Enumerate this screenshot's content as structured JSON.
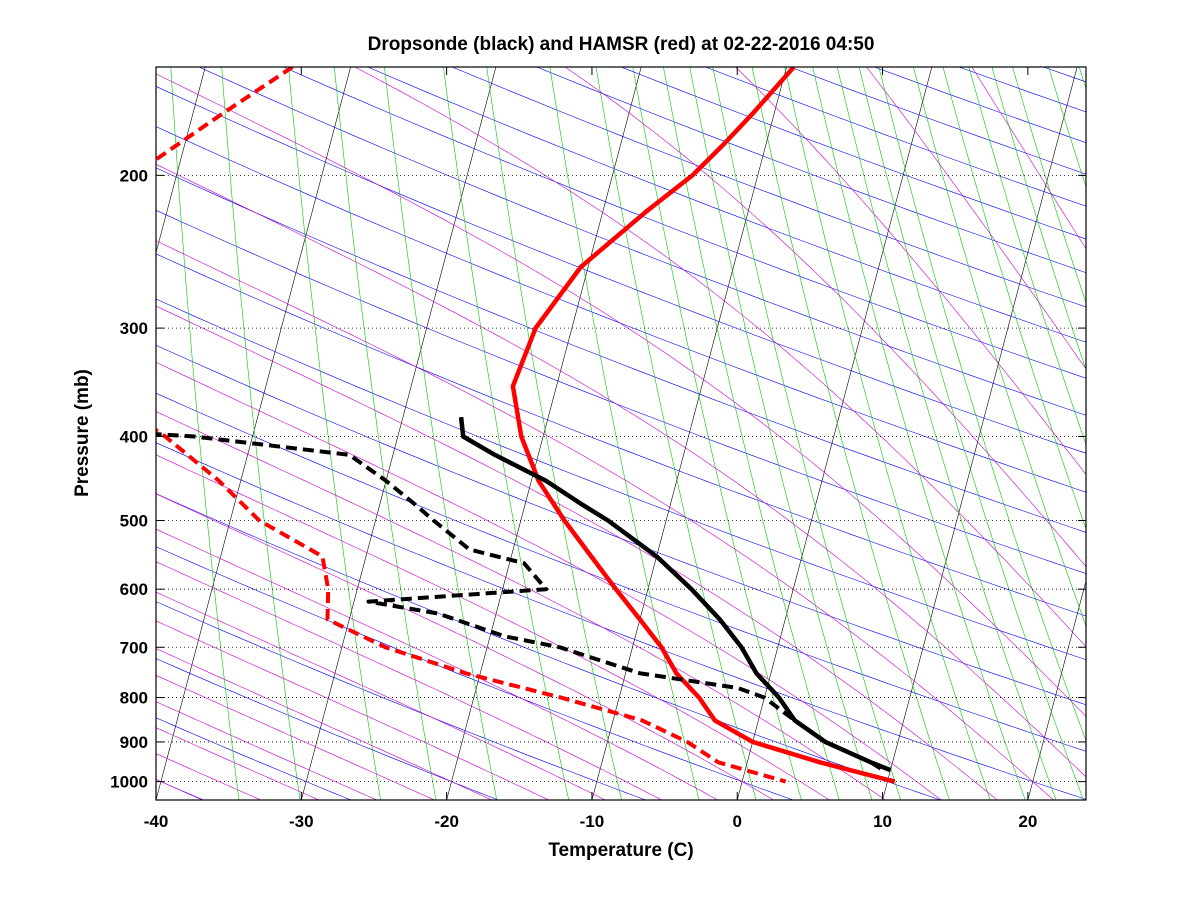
{
  "chart_data": {
    "type": "line",
    "subtype": "skew-T log-P diagram",
    "title": "Dropsonde (black) and HAMSR (red) at 02-22-2016 04:50",
    "xlabel": "Temperature (C)",
    "ylabel": "Pressure (mb)",
    "xlim": [
      -40,
      24
    ],
    "ylim": [
      1050,
      150
    ],
    "yscale": "log",
    "x_ticks": [
      "-40",
      "-30",
      "-20",
      "-10",
      "0",
      "10",
      "20"
    ],
    "y_ticks": [
      "200",
      "300",
      "400",
      "500",
      "600",
      "700",
      "800",
      "900",
      "1000"
    ],
    "grid": "dotted at pressure ticks",
    "colors": {
      "dropsonde": "#000000",
      "hamsr": "#ff0000",
      "isotherm": "#000000",
      "dry_adiabat": "#0000ff",
      "moist_adiabat": "#cc00cc",
      "mixing_ratio": "#00cc00"
    },
    "series": [
      {
        "style": "solid",
        "color": "#ff0000",
        "pressure": [
          150,
          170,
          185,
          200,
          220,
          255,
          300,
          350,
          400,
          450,
          500,
          550,
          600,
          650,
          700,
          750,
          800,
          850,
          900,
          950,
          1000
        ],
        "temperature": [
          -9.5,
          -11.5,
          -13,
          -14.5,
          -17,
          -20.5,
          -22.5,
          -23,
          -21.5,
          -19.5,
          -17,
          -14.5,
          -12.2,
          -10,
          -8,
          -6.5,
          -4.5,
          -3,
          0,
          5,
          10.5
        ]
      },
      {
        "style": "dashed",
        "color": "#ff0000",
        "pressure": [
          150,
          170,
          200,
          255,
          300,
          350,
          400,
          450,
          500,
          550,
          600,
          650,
          700,
          750,
          800,
          850,
          900,
          950,
          1000
        ],
        "temperature": [
          -44,
          -48,
          -53,
          -58,
          -55,
          -52,
          -46,
          -41.5,
          -38,
          -33,
          -32,
          -31.5,
          -27,
          -21,
          -14,
          -8,
          -4.5,
          -2,
          3
        ]
      },
      {
        "style": "solid",
        "color": "#000000",
        "pressure": [
          380,
          400,
          420,
          450,
          480,
          500,
          550,
          600,
          650,
          700,
          750,
          800,
          850,
          900,
          950,
          970
        ],
        "temperature": [
          -26,
          -25.5,
          -23,
          -19,
          -16,
          -14,
          -10,
          -7,
          -4.5,
          -2.5,
          -1,
          1,
          2.5,
          5,
          8.5,
          10
        ]
      },
      {
        "style": "dashed",
        "color": "#000000",
        "pressure": [
          375,
          380,
          390,
          400,
          420,
          450,
          480,
          500,
          540,
          560,
          600,
          620,
          640,
          680,
          700,
          750,
          780,
          800,
          850,
          900,
          950,
          970
        ],
        "temperature": [
          -79,
          -69,
          -55,
          -44,
          -33,
          -30,
          -27.5,
          -26,
          -23,
          -19,
          -17,
          -29,
          -24,
          -19,
          -15,
          -9,
          -2,
          0,
          2.5,
          5,
          8.5,
          9.5
        ]
      }
    ]
  }
}
